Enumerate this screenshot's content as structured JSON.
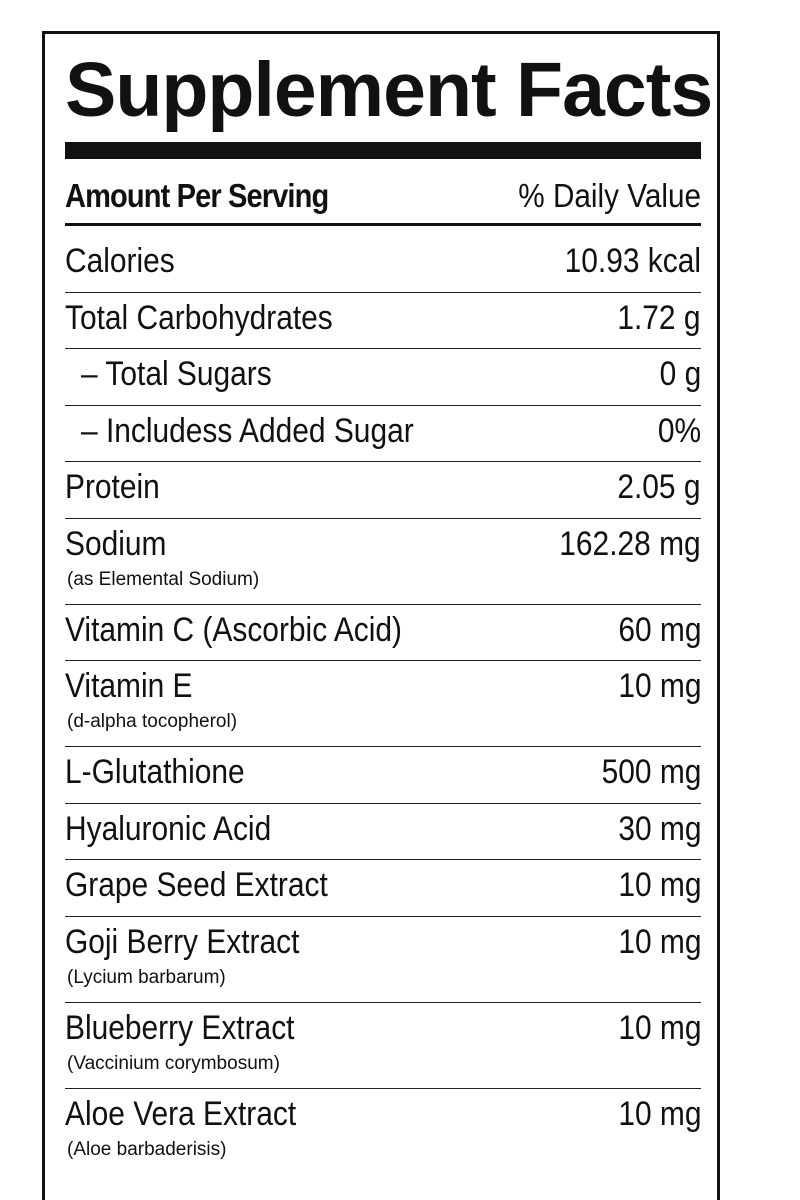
{
  "label": {
    "title": "Supplement Facts",
    "header": {
      "left": "Amount Per Serving",
      "right": "% Daily Value"
    },
    "rows": [
      {
        "name": "Calories",
        "value": "10.93 kcal"
      },
      {
        "name": "Total Carbohydrates",
        "value": "1.72 g"
      },
      {
        "name": "– Total Sugars",
        "value": "0 g"
      },
      {
        "name": "– Includess Added Sugar",
        "value": "0%"
      },
      {
        "name": "Protein",
        "value": "2.05 g"
      },
      {
        "name": "Sodium",
        "sub": "(as Elemental Sodium)",
        "value": "162.28 mg"
      },
      {
        "name": "Vitamin C (Ascorbic Acid)",
        "value": "60 mg"
      },
      {
        "name": "Vitamin E",
        "sub": "(d-alpha tocopherol)",
        "value": "10 mg"
      },
      {
        "name": "L-Glutathione",
        "value": "500 mg"
      },
      {
        "name": "Hyaluronic Acid",
        "value": "30 mg"
      },
      {
        "name": "Grape Seed Extract",
        "value": "10 mg"
      },
      {
        "name": "Goji Berry Extract",
        "sub": "(Lycium barbarum)",
        "value": "10 mg"
      },
      {
        "name": "Blueberry Extract",
        "sub": "(Vaccinium corymbosum)",
        "value": "10 mg"
      },
      {
        "name": "Aloe Vera Extract",
        "sub": "(Aloe barbaderisis)",
        "value": "10 mg"
      }
    ]
  }
}
